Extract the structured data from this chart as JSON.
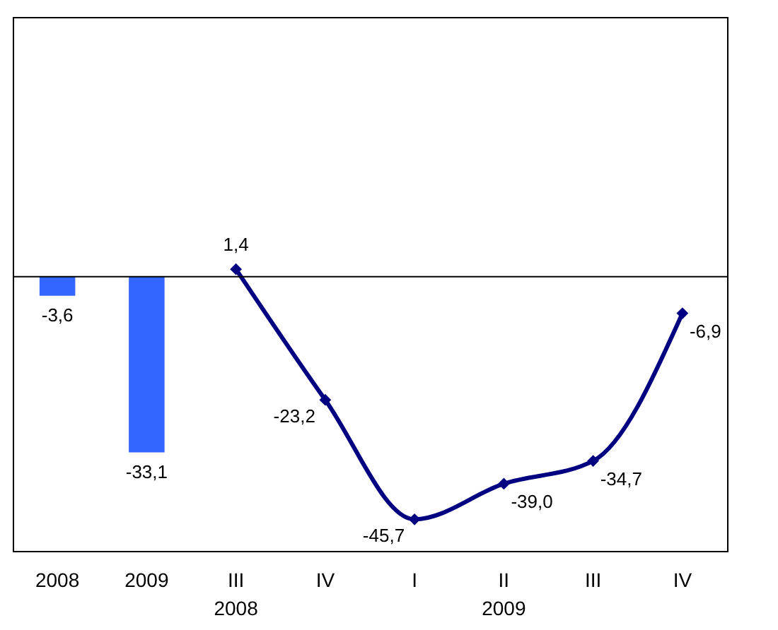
{
  "chart_data": {
    "type": "bar",
    "categories": [
      "2008",
      "2009",
      "III\n2008",
      "IV",
      "I",
      "II\n2009",
      "III",
      "IV"
    ],
    "series": [
      {
        "color": "#3366ff",
        "values": [
          -3.6,
          -33.1,
          null,
          null,
          null,
          null,
          null,
          null
        ],
        "value_labels": [
          "-3,6",
          "-33,1",
          null,
          null,
          null,
          null,
          null,
          null
        ]
      },
      {
        "type": "line",
        "color": "#000080",
        "values": [
          null,
          null,
          1.4,
          -23.2,
          -45.7,
          -39.0,
          -34.7,
          -6.9
        ],
        "value_labels": [
          null,
          null,
          "1,4",
          "-23,2",
          "-45,7",
          "-39,0",
          "-34,7",
          "-6,9"
        ]
      }
    ],
    "marker": "diamond",
    "line_style": "solid",
    "grid": false
  }
}
